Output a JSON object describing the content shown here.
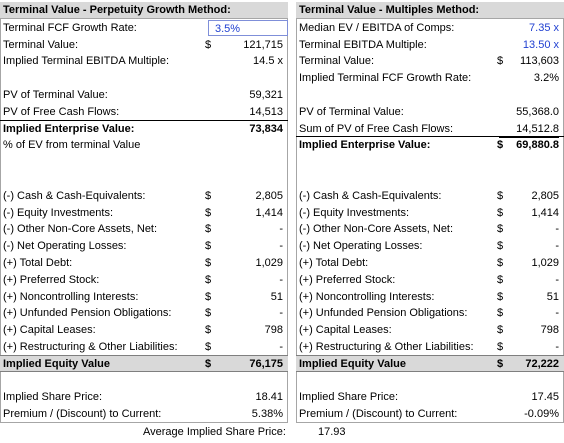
{
  "left": {
    "title": "Terminal Value - Perpetuity Growth Method:",
    "blocks": [
      [
        {
          "label": "Terminal FCF Growth Rate:",
          "value": "3.5%",
          "input": true,
          "boxed": true
        },
        {
          "label": "Terminal Value:",
          "currency": "$",
          "value": "121,715"
        },
        {
          "label": "Implied Terminal EBITDA Multiple:",
          "value": "14.5 x"
        }
      ],
      [
        {
          "label": "PV of Terminal Value:",
          "value": "59,321"
        },
        {
          "label": "PV of Free Cash Flows:",
          "value": "14,513",
          "underline": true
        },
        {
          "label": "Implied Enterprise Value:",
          "value": "73,834",
          "bold": true
        },
        {
          "label": "% of EV from terminal Value"
        }
      ],
      [
        {
          "label": "(-) Cash & Cash-Equivalents:",
          "currency": "$",
          "value": "2,805"
        },
        {
          "label": "(-) Equity Investments:",
          "currency": "$",
          "value": "1,414"
        },
        {
          "label": "(-) Other Non-Core Assets, Net:",
          "currency": "$",
          "value": "-"
        },
        {
          "label": "(-) Net Operating Losses:",
          "currency": "$",
          "value": "-"
        },
        {
          "label": "(+) Total Debt:",
          "currency": "$",
          "value": "1,029"
        },
        {
          "label": "(+) Preferred Stock:",
          "currency": "$",
          "value": "-"
        },
        {
          "label": "(+) Noncontrolling Interests:",
          "currency": "$",
          "value": "51"
        },
        {
          "label": "(+) Unfunded Pension Obligations:",
          "currency": "$",
          "value": "-"
        },
        {
          "label": "(+) Capital Leases:",
          "currency": "$",
          "value": "798"
        },
        {
          "label": "(+) Restructuring & Other Liabilities:",
          "currency": "$",
          "value": "-",
          "underline": true
        },
        {
          "label": "Implied Equity Value",
          "currency": "$",
          "value": "76,175",
          "bold": true,
          "shaded": true
        }
      ],
      [
        {
          "label": "Implied Share Price:",
          "value": "18.41"
        },
        {
          "label": "Premium / (Discount) to Current:",
          "value": "5.38%"
        }
      ]
    ]
  },
  "right": {
    "title": "Terminal Value - Multiples Method:",
    "blocks": [
      [
        {
          "label": "Median EV / EBITDA of Comps:",
          "value": "7.35 x",
          "input": true
        },
        {
          "label": "Terminal EBITDA Multiple:",
          "value": "13.50 x",
          "input": true
        },
        {
          "label": "Terminal Value:",
          "currency": "$",
          "value": "113,603"
        },
        {
          "label": "Implied Terminal FCF Growth Rate:",
          "value": "3.2%"
        }
      ],
      [
        {
          "label": "PV of Terminal Value:",
          "value": "55,368.0"
        },
        {
          "label": "Sum of PV of Free Cash Flows:",
          "value": "14,512.8",
          "underline": true
        },
        {
          "label": "Implied Enterprise Value:",
          "currency": "$",
          "value": "69,880.8",
          "bold": true
        }
      ],
      [
        {
          "label": "(-) Cash & Cash-Equivalents:",
          "currency": "$",
          "value": "2,805"
        },
        {
          "label": "(-) Equity Investments:",
          "currency": "$",
          "value": "1,414"
        },
        {
          "label": "(-) Other Non-Core Assets, Net:",
          "currency": "$",
          "value": "-"
        },
        {
          "label": "(-) Net Operating Losses:",
          "currency": "$",
          "value": "-"
        },
        {
          "label": "(+) Total Debt:",
          "currency": "$",
          "value": "1,029"
        },
        {
          "label": "(+) Preferred Stock:",
          "currency": "$",
          "value": "-"
        },
        {
          "label": "(+) Noncontrolling Interests:",
          "currency": "$",
          "value": "51"
        },
        {
          "label": "(+) Unfunded Pension Obligations:",
          "currency": "$",
          "value": "-"
        },
        {
          "label": "(+) Capital Leases:",
          "currency": "$",
          "value": "798"
        },
        {
          "label": "(+) Restructuring & Other Liabilities:",
          "currency": "$",
          "value": "-",
          "underline": true
        },
        {
          "label": "Implied Equity Value",
          "currency": "$",
          "value": "72,222",
          "bold": true,
          "shaded": true
        }
      ],
      [
        {
          "label": "Implied Share Price:",
          "value": "17.45"
        },
        {
          "label": "Premium / (Discount) to Current:",
          "value": "-0.09%"
        }
      ]
    ]
  },
  "footer": {
    "label": "Average Implied Share Price:",
    "value": "17.93"
  }
}
